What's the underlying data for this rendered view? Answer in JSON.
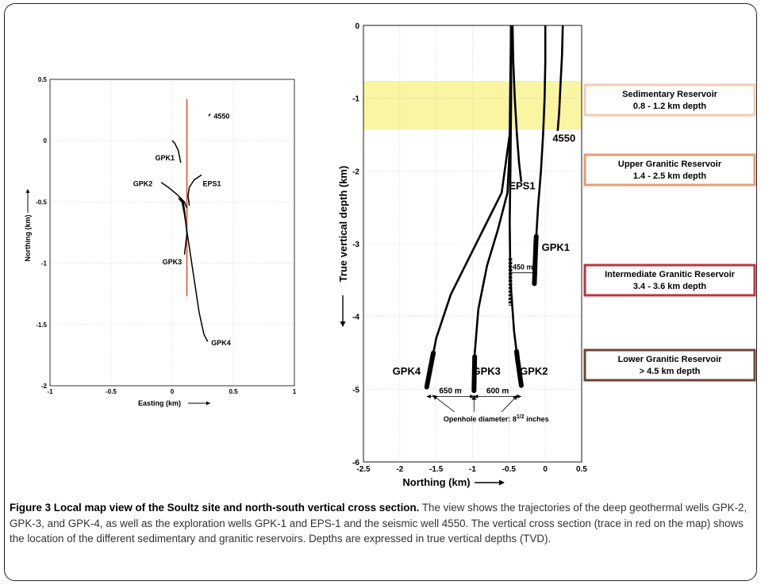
{
  "chart_data": [
    {
      "type": "line",
      "title": "",
      "xlabel": "Easting (km)",
      "ylabel": "Northing (km)",
      "xlim": [
        -1,
        1
      ],
      "ylim": [
        -2,
        0.5
      ],
      "xticks": [
        -1,
        -0.5,
        0,
        0.5,
        1
      ],
      "yticks": [
        0.5,
        0,
        -0.5,
        -1,
        -1.5,
        -2
      ],
      "grid": true,
      "series": [
        {
          "name": "GPK1",
          "x": [
            0,
            0.02,
            0.05,
            0.06,
            0.07
          ],
          "y": [
            0,
            -0.02,
            -0.08,
            -0.13,
            -0.18
          ]
        },
        {
          "name": "GPK2",
          "x": [
            -0.09,
            -0.02,
            0.04,
            0.07,
            0.1,
            0.12
          ],
          "y": [
            -0.34,
            -0.39,
            -0.44,
            -0.47,
            -0.5,
            -0.55
          ]
        },
        {
          "name": "EPS1",
          "x": [
            0.24,
            0.18,
            0.14,
            0.13,
            0.14
          ],
          "y": [
            -0.28,
            -0.32,
            -0.38,
            -0.45,
            -0.53
          ]
        },
        {
          "name": "GPK3",
          "x": [
            0.05,
            0.07,
            0.09,
            0.1,
            0.11,
            0.12,
            0.11,
            0.1
          ],
          "y": [
            -0.47,
            -0.48,
            -0.5,
            -0.56,
            -0.65,
            -0.76,
            -0.85,
            -0.93
          ]
        },
        {
          "name": "GPK4",
          "x": [
            0.06,
            0.08,
            0.1,
            0.13,
            0.16,
            0.19,
            0.22,
            0.26,
            0.29
          ],
          "y": [
            -0.48,
            -0.5,
            -0.6,
            -0.8,
            -1.0,
            -1.2,
            -1.4,
            -1.58,
            -1.64
          ]
        },
        {
          "name": "4550",
          "x": [
            0.3,
            0.31
          ],
          "y": [
            0.2,
            0.22
          ]
        }
      ],
      "section_line": {
        "x": [
          0.12,
          0.12
        ],
        "y": [
          0.34,
          -1.27
        ],
        "color": "#d9542c"
      },
      "labels": [
        {
          "text": "GPK1",
          "x": -0.14,
          "y": -0.16
        },
        {
          "text": "GPK2",
          "x": -0.32,
          "y": -0.37
        },
        {
          "text": "EPS1",
          "x": 0.25,
          "y": -0.37
        },
        {
          "text": "GPK3",
          "x": -0.08,
          "y": -1.01
        },
        {
          "text": "GPK4",
          "x": 0.32,
          "y": -1.67
        },
        {
          "text": "4550",
          "x": 0.34,
          "y": 0.18
        }
      ]
    },
    {
      "type": "line",
      "title": "",
      "xlabel": "Northing (km)",
      "ylabel": "True vertical depth (km)",
      "xlim": [
        -2.5,
        0.5
      ],
      "ylim": [
        -6,
        0
      ],
      "xticks": [
        -2.5,
        -2,
        -1.5,
        -1,
        -0.5,
        0,
        0.5
      ],
      "yticks": [
        0,
        -1,
        -2,
        -3,
        -4,
        -5,
        -6
      ],
      "grid": true,
      "series": [
        {
          "name": "GPK1",
          "x": [
            0,
            0,
            -0.01,
            -0.03,
            -0.06,
            -0.1,
            -0.13,
            -0.15
          ],
          "y": [
            0,
            -0.5,
            -1,
            -1.5,
            -2.0,
            -2.5,
            -3.0,
            -3.55
          ]
        },
        {
          "name": "4550",
          "x": [
            0.24,
            0.23,
            0.21,
            0.19,
            0.17
          ],
          "y": [
            0,
            -0.4,
            -0.8,
            -1.2,
            -1.45
          ]
        },
        {
          "name": "EPS1",
          "x": [
            -0.45,
            -0.44,
            -0.42,
            -0.39,
            -0.36,
            -0.33
          ],
          "y": [
            0,
            -0.5,
            -1.0,
            -1.5,
            -1.9,
            -2.15
          ]
        },
        {
          "name": "GPK2",
          "x": [
            -0.47,
            -0.47,
            -0.48,
            -0.49,
            -0.48,
            -0.43,
            -0.38,
            -0.33
          ],
          "y": [
            0,
            -1,
            -2,
            -2.7,
            -3.5,
            -4.2,
            -4.6,
            -4.95
          ]
        },
        {
          "name": "GPK3",
          "x": [
            -0.47,
            -0.48,
            -0.52,
            -0.65,
            -0.8,
            -0.92,
            -0.97,
            -0.98
          ],
          "y": [
            0,
            -1.5,
            -2.3,
            -2.8,
            -3.3,
            -3.9,
            -4.5,
            -5.02
          ]
        },
        {
          "name": "GPK4",
          "x": [
            -0.47,
            -0.49,
            -0.6,
            -0.8,
            -1.05,
            -1.3,
            -1.5,
            -1.63
          ],
          "y": [
            0,
            -1.5,
            -2.3,
            -2.7,
            -3.2,
            -3.7,
            -4.3,
            -4.97
          ]
        }
      ],
      "reservoirs": [
        {
          "name": "Sedimentary Reservoir",
          "range": "0.8 - 1.2 km depth",
          "color": "#f4cbb5"
        },
        {
          "name": "Upper Granitic Reservoir",
          "range": "1.4 - 2.5 km depth",
          "color": "#ec9a72"
        },
        {
          "name": "Intermediate Granitic Reservoir",
          "range": "3.4 - 3.6 km depth",
          "color": "#c0333a"
        },
        {
          "name": "Lower Granitic Reservoir",
          "range": "> 4.5 km depth",
          "color": "#6b4536"
        }
      ],
      "highlight_band": {
        "y": [
          -0.77,
          -1.42
        ],
        "color": "#faf5a0"
      },
      "labels": [
        {
          "text": "4550",
          "x": 0.1,
          "y": -1.6
        },
        {
          "text": "EPS1",
          "x": -0.5,
          "y": -2.25
        },
        {
          "text": "GPK1",
          "x": -0.05,
          "y": -3.1
        },
        {
          "text": "GPK4",
          "x": -2.1,
          "y": -4.8
        },
        {
          "text": "GPK3",
          "x": -1.0,
          "y": -4.8
        },
        {
          "text": "GPK2",
          "x": -0.35,
          "y": -4.8
        }
      ],
      "annotations": {
        "spacing_450": "450 m",
        "spacing_650": "650 m",
        "spacing_600": "600 m",
        "openhole": "Openhole diameter: 8",
        "openhole_sup": "1/2",
        "openhole_tail": " inches"
      }
    }
  ],
  "caption": {
    "title": "Figure 3 Local map view of the Soultz site and north-south vertical cross section.",
    "body": " The view shows the trajectories of the deep geothermal wells GPK-2, GPK-3, and GPK-4, as well as the exploration wells GPK-1 and EPS-1 and the seismic well 4550. The vertical cross section (trace in red on the map) shows the location of the different sedimentary and granitic reservoirs. Depths are expressed in true vertical depths (TVD)."
  }
}
